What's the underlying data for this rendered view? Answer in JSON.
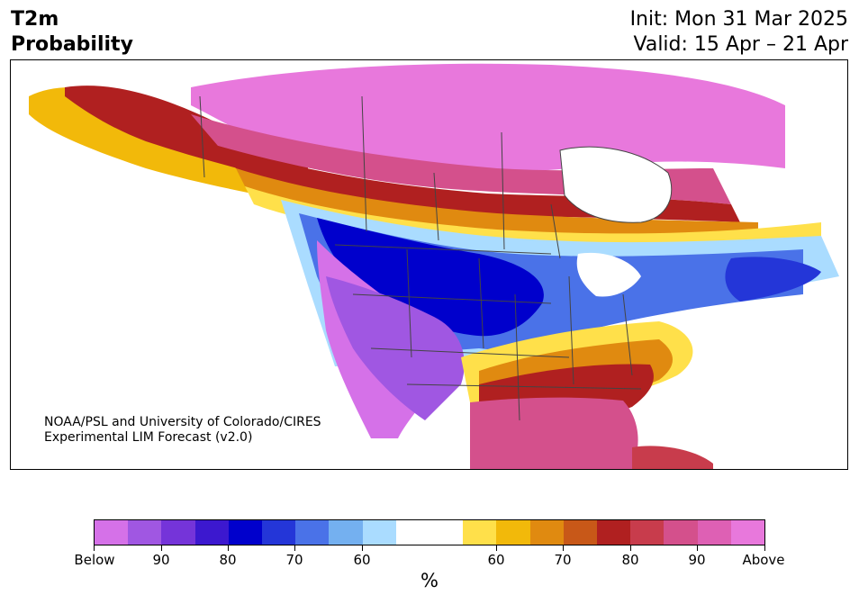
{
  "header": {
    "title_line1": "T2m",
    "title_line2": "Probability",
    "init": "Init: Mon 31 Mar 2025",
    "valid": "Valid: 15 Apr – 21 Apr"
  },
  "map": {
    "region": "North America",
    "credit_line1": "NOAA/PSL and University of Colorado/CIRES",
    "credit_line2": "Experimental LIM Forecast (v2.0)"
  },
  "colorbar": {
    "colors": [
      "#d571e8",
      "#a057e2",
      "#7534d9",
      "#3c18cf",
      "#0000cc",
      "#2436d8",
      "#4a72e8",
      "#74b0f0",
      "#aadcff",
      "#ffffff",
      "#ffffff",
      "#ffe04a",
      "#f2b90a",
      "#e08a10",
      "#c85818",
      "#b02020",
      "#c83c4c",
      "#d4508c",
      "#de60b4",
      "#e878dc"
    ],
    "tick_labels": [
      "Below",
      "90",
      "80",
      "70",
      "60",
      "60",
      "70",
      "80",
      "90",
      "Above"
    ],
    "unit": "%"
  }
}
